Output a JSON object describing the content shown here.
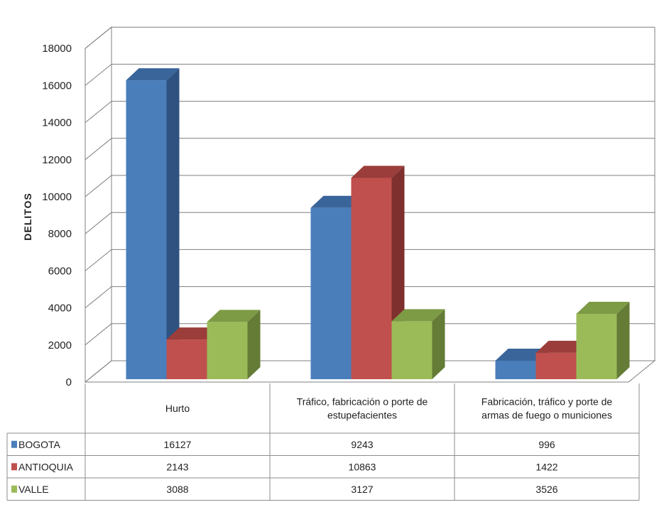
{
  "chart_data": {
    "type": "bar",
    "ylabel": "DELITOS",
    "ylim": [
      0,
      18000
    ],
    "yticks": [
      "0",
      "2000",
      "4000",
      "6000",
      "8000",
      "10000",
      "12000",
      "14000",
      "16000",
      "18000"
    ],
    "categories": [
      "Hurto",
      "Tráfico, fabricación o porte de estupefacientes",
      "Fabricación, tráfico y porte de armas de fuego o municiones"
    ],
    "category_lines": [
      [
        "Hurto"
      ],
      [
        "Tráfico, fabricación o porte de",
        "estupefacientes"
      ],
      [
        "Fabricación, tráfico y porte de",
        "armas de fuego o municiones"
      ]
    ],
    "series": [
      {
        "name": "BOGOTA",
        "values": [
          16127,
          9243,
          996
        ]
      },
      {
        "name": "ANTIOQUIA",
        "values": [
          2143,
          10863,
          1422
        ]
      },
      {
        "name": "VALLE",
        "values": [
          3088,
          3127,
          3526
        ]
      }
    ],
    "value_labels": [
      [
        "16127",
        "9243",
        "996"
      ],
      [
        "2143",
        "10863",
        "1422"
      ],
      [
        "3088",
        "3127",
        "3526"
      ]
    ],
    "colors": {
      "series": [
        "#4a7ebb",
        "#c0504d",
        "#9bbb59"
      ],
      "series_top": [
        "#3a659a",
        "#9b3d3a",
        "#7d9a45"
      ],
      "series_side": [
        "#2f5281",
        "#7e302e",
        "#647c36"
      ],
      "grid": "#7f7f7f",
      "table_border": "#8c8c8c"
    },
    "grid": true,
    "legend": "table"
  }
}
